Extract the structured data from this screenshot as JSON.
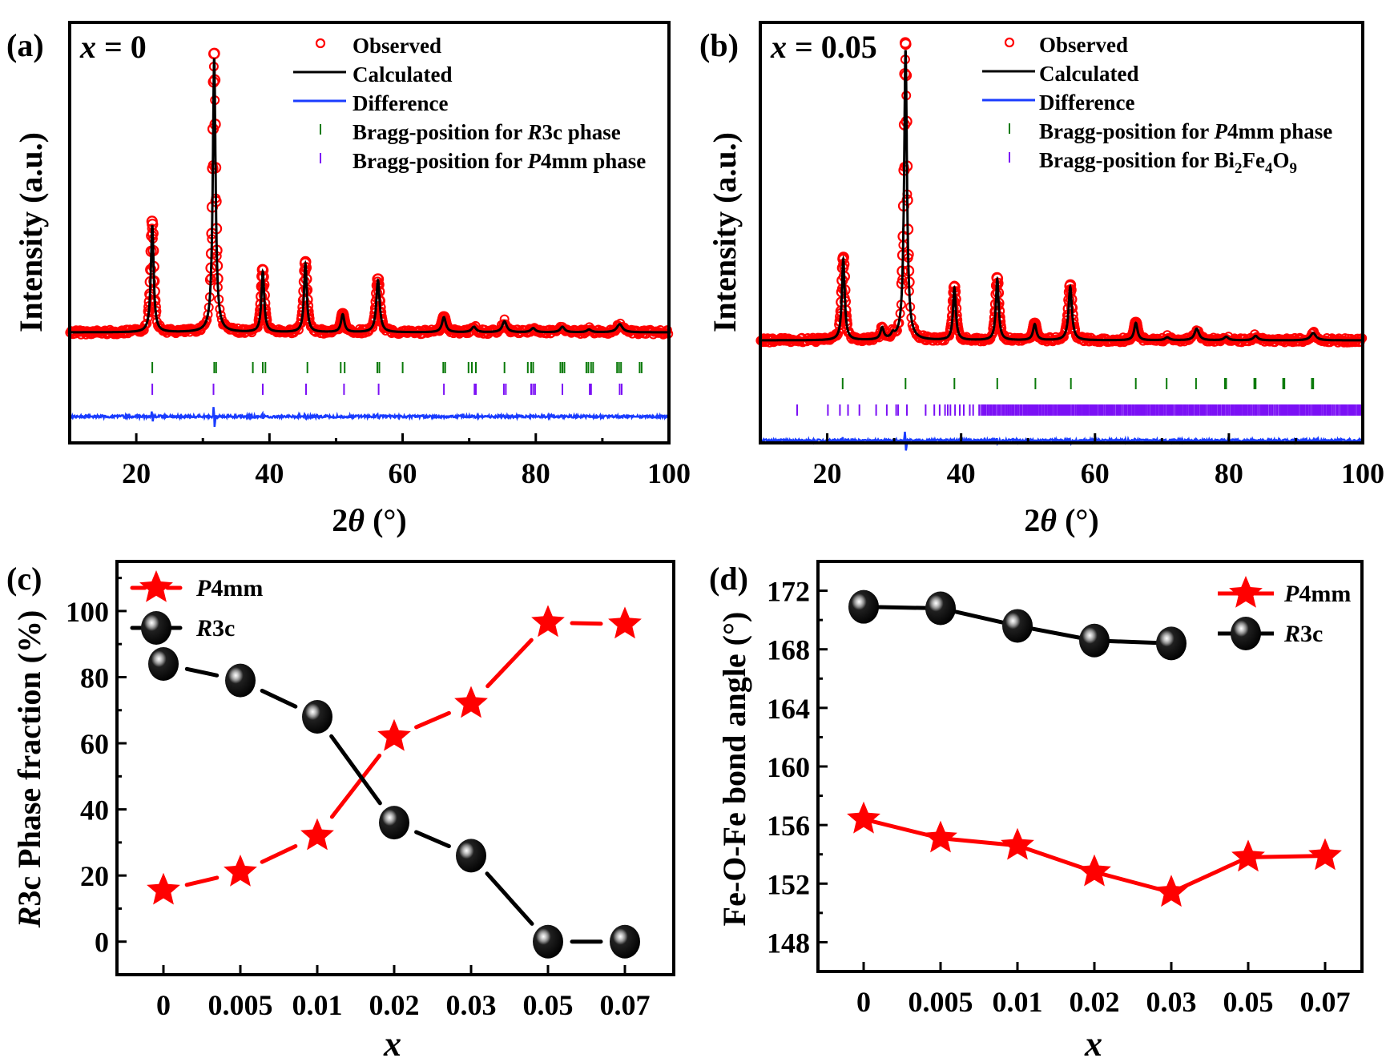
{
  "chart_data": [
    {
      "id": "a",
      "type": "line",
      "panel_label": "(a)",
      "annotation": {
        "var": "x",
        "eq": " = 0"
      },
      "title": "",
      "xlabel": {
        "main": "2",
        "theta": "θ",
        "unit": " (°)"
      },
      "ylabel": "Intensity (a.u.)",
      "xlim": [
        10,
        100
      ],
      "xticks": [
        20,
        40,
        60,
        80,
        100
      ],
      "xminor": [
        30,
        50,
        70,
        90
      ],
      "yticks_shown": false,
      "legend_position": "top-right",
      "legend": [
        {
          "kind": "circle",
          "color": "#ff0000",
          "label": "Observed"
        },
        {
          "kind": "line",
          "color": "#000000",
          "label": "Calculated"
        },
        {
          "kind": "line",
          "color": "#1a3cff",
          "label": "Difference"
        },
        {
          "kind": "tick",
          "color": "#0a7a0a",
          "label_pre": "Bragg-position for ",
          "label_it": "R",
          "label_post": "3c phase"
        },
        {
          "kind": "tick",
          "color": "#7b10f5",
          "label_pre": "Bragg-position for ",
          "label_it": "P",
          "label_post": "4mm phase"
        }
      ],
      "peaks": [
        {
          "pos": 22.4,
          "rel_intensity": 39,
          "width": 0.25
        },
        {
          "pos": 31.7,
          "rel_intensity": 100,
          "width": 0.25
        },
        {
          "pos": 39.0,
          "rel_intensity": 22,
          "width": 0.25
        },
        {
          "pos": 45.4,
          "rel_intensity": 25,
          "width": 0.25
        },
        {
          "pos": 51.0,
          "rel_intensity": 6.5,
          "width": 0.3
        },
        {
          "pos": 56.3,
          "rel_intensity": 19,
          "width": 0.3
        },
        {
          "pos": 66.2,
          "rel_intensity": 5.5,
          "width": 0.35
        },
        {
          "pos": 70.7,
          "rel_intensity": 2,
          "width": 0.4
        },
        {
          "pos": 75.3,
          "rel_intensity": 4,
          "width": 0.4
        },
        {
          "pos": 79.6,
          "rel_intensity": 1.5,
          "width": 0.4
        },
        {
          "pos": 84.0,
          "rel_intensity": 2,
          "width": 0.4
        },
        {
          "pos": 88.0,
          "rel_intensity": 1,
          "width": 0.4
        },
        {
          "pos": 92.6,
          "rel_intensity": 3,
          "width": 0.5
        }
      ],
      "bragg_series": [
        {
          "name": "R3c",
          "color": "#0a7a0a",
          "positions": [
            22.4,
            31.7,
            32.0,
            37.5,
            39.0,
            39.4,
            45.7,
            50.7,
            51.3,
            56.2,
            56.5,
            60.0,
            66.1,
            66.4,
            69.9,
            70.4,
            71.0,
            75.3,
            78.8,
            79.3,
            79.6,
            83.7,
            84.0,
            84.3,
            87.6,
            87.9,
            88.3,
            88.6,
            92.2,
            92.5,
            92.8,
            95.6,
            95.9
          ]
        },
        {
          "name": "P4mm",
          "color": "#7b10f5",
          "positions": [
            22.4,
            31.6,
            39.0,
            45.5,
            51.2,
            56.4,
            66.2,
            70.8,
            71.0,
            75.2,
            75.5,
            79.3,
            79.6,
            79.9,
            84.0,
            88.1,
            88.3,
            92.6,
            92.9
          ]
        }
      ]
    },
    {
      "id": "b",
      "type": "line",
      "panel_label": "(b)",
      "annotation": {
        "var": "x",
        "eq": " = 0.05"
      },
      "title": "",
      "xlabel": {
        "main": "2",
        "theta": "θ",
        "unit": " (°)"
      },
      "ylabel": "Intensity (a.u.)",
      "xlim": [
        10,
        100
      ],
      "xticks": [
        20,
        40,
        60,
        80,
        100
      ],
      "xminor": [
        30,
        50,
        70,
        90
      ],
      "yticks_shown": false,
      "legend_position": "top-right",
      "legend": [
        {
          "kind": "circle",
          "color": "#ff0000",
          "label": "Observed"
        },
        {
          "kind": "line",
          "color": "#000000",
          "label": "Calculated"
        },
        {
          "kind": "line",
          "color": "#1a3cff",
          "label": "Difference"
        },
        {
          "kind": "tick",
          "color": "#0a7a0a",
          "label_pre": "Bragg-position for ",
          "label_it": "P",
          "label_post": "4mm phase"
        },
        {
          "kind": "tick",
          "color": "#7b10f5",
          "label_pre": "Bragg-position for Bi",
          "sub1": "2",
          "mid": "Fe",
          "sub2": "4",
          "mid2": "O",
          "sub3": "9"
        }
      ],
      "peaks": [
        {
          "pos": 22.4,
          "rel_intensity": 28,
          "width": 0.25
        },
        {
          "pos": 28.2,
          "rel_intensity": 4,
          "width": 0.3
        },
        {
          "pos": 29.8,
          "rel_intensity": 1.5,
          "width": 0.3
        },
        {
          "pos": 31.7,
          "rel_intensity": 100,
          "width": 0.25
        },
        {
          "pos": 39.0,
          "rel_intensity": 18,
          "width": 0.25
        },
        {
          "pos": 45.4,
          "rel_intensity": 21,
          "width": 0.25
        },
        {
          "pos": 51.0,
          "rel_intensity": 5.5,
          "width": 0.3
        },
        {
          "pos": 56.3,
          "rel_intensity": 18.5,
          "width": 0.3
        },
        {
          "pos": 66.1,
          "rel_intensity": 6,
          "width": 0.3
        },
        {
          "pos": 70.8,
          "rel_intensity": 1,
          "width": 0.4
        },
        {
          "pos": 75.2,
          "rel_intensity": 4,
          "width": 0.4
        },
        {
          "pos": 79.6,
          "rel_intensity": 1.2,
          "width": 0.4
        },
        {
          "pos": 84.0,
          "rel_intensity": 1.5,
          "width": 0.4
        },
        {
          "pos": 92.6,
          "rel_intensity": 2.5,
          "width": 0.5
        }
      ],
      "bragg_series": [
        {
          "name": "P4mm",
          "color": "#0a7a0a",
          "positions": [
            22.3,
            31.7,
            39.0,
            45.4,
            51.1,
            56.4,
            66.1,
            70.7,
            75.1,
            79.4,
            79.6,
            83.8,
            84.0,
            88.1,
            88.3,
            92.4,
            92.6
          ]
        },
        {
          "name": "Bi2Fe4O9",
          "color": "#7b10f5",
          "dense_from": 35.0,
          "dense_step": 0.18,
          "positions": [
            15.5,
            20.1,
            21.9,
            23.1,
            24.8,
            27.3,
            28.9,
            30.3,
            30.6,
            31.9,
            34.7,
            36.0,
            36.8,
            37.6,
            38.0,
            38.4,
            39.1,
            39.8,
            40.4,
            41.3,
            41.8,
            42.7
          ]
        }
      ]
    },
    {
      "id": "c",
      "type": "line",
      "panel_label": "(c)",
      "title": "",
      "xlabel": "x",
      "ylabel": {
        "italic": "R",
        "rest": "3c Phase fraction (%)"
      },
      "categories": [
        "0",
        "0.005",
        "0.01",
        "0.02",
        "0.03",
        "0.05",
        "0.07"
      ],
      "ylim": [
        -10,
        115
      ],
      "yticks": [
        0,
        20,
        40,
        60,
        80,
        100
      ],
      "yminor": [
        10,
        30,
        50,
        70,
        90,
        110
      ],
      "grid": false,
      "legend_position": "top-left",
      "series": [
        {
          "name_it": "P",
          "name_rest": "4mm",
          "marker": "star",
          "color": "#ff0000",
          "dash": true,
          "values": [
            15.5,
            21,
            32,
            62,
            72,
            96.5,
            96
          ]
        },
        {
          "name_it": "R",
          "name_rest": "3c",
          "marker": "ball",
          "color": "#000000",
          "dash": true,
          "values": [
            84,
            79,
            68,
            36,
            26,
            0,
            0
          ]
        }
      ]
    },
    {
      "id": "d",
      "type": "line",
      "panel_label": "(d)",
      "title": "",
      "xlabel": "x",
      "ylabel": "Fe-O-Fe bond angle (°)",
      "categories": [
        "0",
        "0.005",
        "0.01",
        "0.02",
        "0.03",
        "0.05",
        "0.07"
      ],
      "ylim": [
        146,
        174
      ],
      "yticks": [
        148,
        152,
        156,
        160,
        164,
        168,
        172
      ],
      "yminor": [
        150,
        154,
        158,
        162,
        166,
        170
      ],
      "grid": false,
      "legend_position": "top-right",
      "series": [
        {
          "name_it": "P",
          "name_rest": "4mm",
          "marker": "star",
          "color": "#ff0000",
          "dash": false,
          "values": [
            156.4,
            155.1,
            154.6,
            152.8,
            151.4,
            153.8,
            153.9
          ]
        },
        {
          "name_it": "R",
          "name_rest": "3c",
          "marker": "ball",
          "color": "#000000",
          "dash": false,
          "values": [
            170.9,
            170.8,
            169.6,
            168.6,
            168.4,
            null,
            null
          ]
        }
      ]
    }
  ]
}
